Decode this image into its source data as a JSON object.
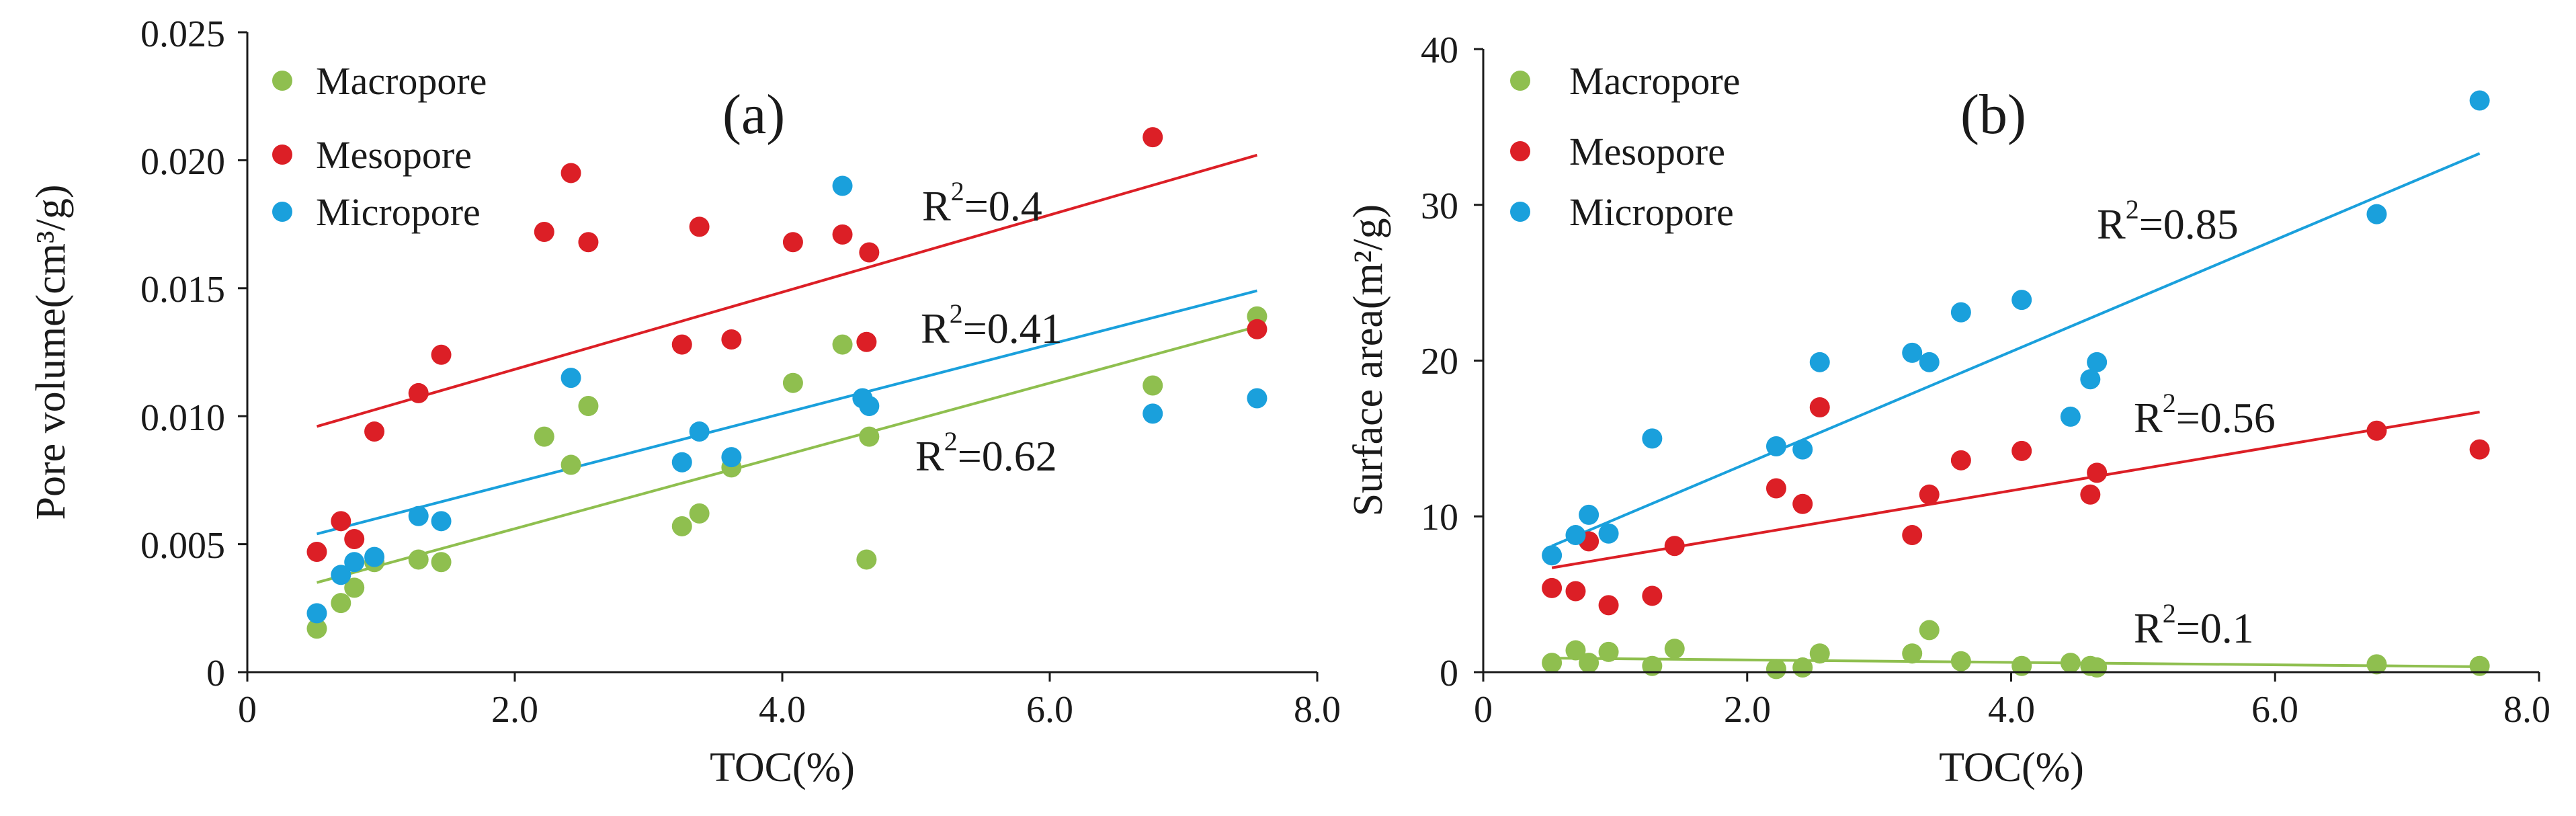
{
  "chart_data": [
    {
      "type": "scatter",
      "panel_label": "(a)",
      "xlabel": "TOC(%)",
      "ylabel": "Pore volume(cm³/g)",
      "xlim": [
        0,
        8.0
      ],
      "ylim": [
        0,
        0.025
      ],
      "xticks": [
        0,
        2.0,
        4.0,
        6.0,
        8.0
      ],
      "xtick_labels": [
        "0",
        "2.0",
        "4.0",
        "6.0",
        "8.0"
      ],
      "yticks": [
        0,
        0.005,
        0.01,
        0.015,
        0.02,
        0.025
      ],
      "ytick_labels": [
        "0",
        "0.005",
        "0.010",
        "0.015",
        "0.020",
        "0.025"
      ],
      "legend_position": "top-left",
      "series": [
        {
          "name": "Macropore",
          "color": "#8fbf4f",
          "x": [
            0.52,
            0.7,
            0.8,
            0.95,
            1.28,
            1.45,
            2.22,
            2.42,
            2.55,
            3.25,
            3.38,
            3.62,
            4.08,
            4.45,
            4.63,
            4.65,
            6.77,
            7.55
          ],
          "y": [
            0.0017,
            0.0027,
            0.0033,
            0.0043,
            0.0044,
            0.0043,
            0.0092,
            0.0081,
            0.0104,
            0.0057,
            0.0062,
            0.008,
            0.0113,
            0.0128,
            0.0044,
            0.0092,
            0.0112,
            0.0139
          ],
          "trend": {
            "x": [
              0.52,
              7.55
            ],
            "y": [
              0.0035,
              0.0135
            ]
          },
          "r2_label": "R",
          "r2_sup": "2",
          "r2_value": "=0.62"
        },
        {
          "name": "Mesopore",
          "color": "#dc1f26",
          "x": [
            0.52,
            0.7,
            0.8,
            0.95,
            1.28,
            1.45,
            2.22,
            2.42,
            2.55,
            3.25,
            3.38,
            3.62,
            4.08,
            4.45,
            4.63,
            4.65,
            6.77,
            7.55
          ],
          "y": [
            0.0047,
            0.0059,
            0.0052,
            0.0094,
            0.0109,
            0.0124,
            0.0172,
            0.0195,
            0.0168,
            0.0128,
            0.0174,
            0.013,
            0.0168,
            0.0171,
            0.0129,
            0.0164,
            0.0209,
            0.0134
          ],
          "trend": {
            "x": [
              0.52,
              7.55
            ],
            "y": [
              0.0096,
              0.0202
            ]
          },
          "r2_label": "R",
          "r2_sup": "2",
          "r2_value": "=0.4"
        },
        {
          "name": "Micropore",
          "color": "#1aa0dc",
          "x": [
            0.52,
            0.7,
            0.8,
            0.95,
            1.28,
            1.45,
            2.42,
            3.25,
            3.38,
            3.62,
            4.45,
            4.6,
            4.65,
            6.77,
            7.55
          ],
          "y": [
            0.0023,
            0.0038,
            0.0043,
            0.0045,
            0.0061,
            0.0059,
            0.0115,
            0.0082,
            0.0094,
            0.0084,
            0.019,
            0.0107,
            0.0104,
            0.0101,
            0.0107
          ],
          "trend": {
            "x": [
              0.52,
              7.55
            ],
            "y": [
              0.0054,
              0.0149
            ]
          },
          "r2_label": "R",
          "r2_sup": "2",
          "r2_value": "=0.41"
        }
      ]
    },
    {
      "type": "scatter",
      "panel_label": "(b)",
      "xlabel": "TOC(%)",
      "ylabel": "Surface area(m²/g)",
      "xlim": [
        0,
        8.0
      ],
      "ylim": [
        0,
        40
      ],
      "xticks": [
        0,
        2.0,
        4.0,
        6.0,
        8.0
      ],
      "xtick_labels": [
        "0",
        "2.0",
        "4.0",
        "6.0",
        "8.0"
      ],
      "yticks": [
        0,
        10,
        20,
        30,
        40
      ],
      "ytick_labels": [
        "0",
        "10",
        "20",
        "30",
        "40"
      ],
      "legend_position": "top-left",
      "series": [
        {
          "name": "Macropore",
          "color": "#8fbf4f",
          "x": [
            0.52,
            0.7,
            0.8,
            0.95,
            1.28,
            1.45,
            2.22,
            2.42,
            2.55,
            3.25,
            3.38,
            3.62,
            4.08,
            4.45,
            4.6,
            4.65,
            6.77,
            7.55
          ],
          "y": [
            0.6,
            1.4,
            0.6,
            1.3,
            0.4,
            1.5,
            0.2,
            0.3,
            1.2,
            1.2,
            2.7,
            0.7,
            0.4,
            0.6,
            0.4,
            0.3,
            0.5,
            0.4
          ],
          "trend": {
            "x": [
              0.52,
              7.55
            ],
            "y": [
              0.9,
              0.35
            ]
          },
          "r2_label": "R",
          "r2_sup": "2",
          "r2_value": "=0.1"
        },
        {
          "name": "Mesopore",
          "color": "#dc1f26",
          "x": [
            0.52,
            0.7,
            0.8,
            0.95,
            1.28,
            1.45,
            2.22,
            2.42,
            2.55,
            3.25,
            3.38,
            3.62,
            4.08,
            4.6,
            4.65,
            6.77,
            7.55
          ],
          "y": [
            5.4,
            5.2,
            8.4,
            4.3,
            4.9,
            8.1,
            11.8,
            10.8,
            17.0,
            8.8,
            11.4,
            13.6,
            14.2,
            11.4,
            12.8,
            15.5,
            14.3
          ],
          "trend": {
            "x": [
              0.52,
              7.55
            ],
            "y": [
              6.7,
              16.7
            ]
          },
          "r2_label": "R",
          "r2_sup": "2",
          "r2_value": "=0.56"
        },
        {
          "name": "Micropore",
          "color": "#1aa0dc",
          "x": [
            0.52,
            0.7,
            0.8,
            0.95,
            1.28,
            2.22,
            2.42,
            2.55,
            3.25,
            3.38,
            3.62,
            4.08,
            4.45,
            4.6,
            4.65,
            6.77,
            7.55
          ],
          "y": [
            7.5,
            8.8,
            10.1,
            8.9,
            15.0,
            14.5,
            14.3,
            19.9,
            20.5,
            19.9,
            23.1,
            23.9,
            16.4,
            18.8,
            19.9,
            29.4,
            36.7
          ],
          "trend": {
            "x": [
              0.52,
              7.55
            ],
            "y": [
              8.1,
              33.3
            ]
          },
          "r2_label": "R",
          "r2_sup": "2",
          "r2_value": "=0.85"
        }
      ]
    }
  ]
}
